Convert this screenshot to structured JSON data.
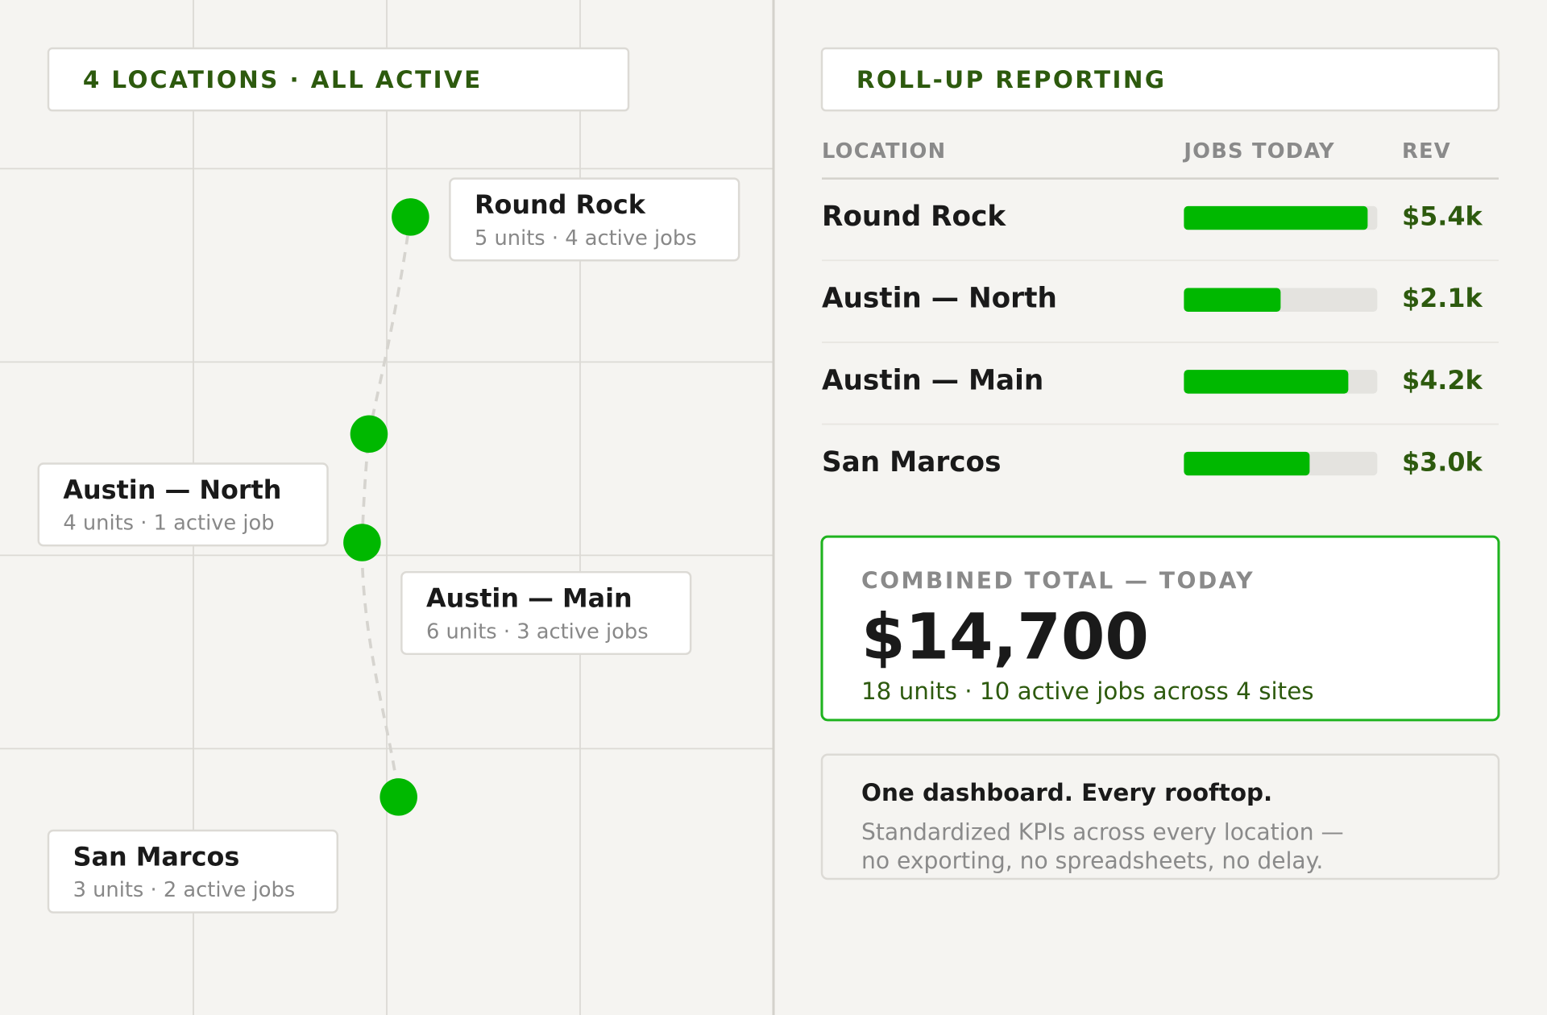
{
  "header": {
    "title": "4 LOCATIONS · ALL ACTIVE"
  },
  "locations": [
    {
      "name": "Round Rock",
      "detail": "5 units · 4 active jobs"
    },
    {
      "name": "Austin — North",
      "detail": "4 units · 1 active job"
    },
    {
      "name": "Austin — Main",
      "detail": "6 units · 3 active jobs"
    },
    {
      "name": "San Marcos",
      "detail": "3 units · 2 active jobs"
    }
  ],
  "report": {
    "title": "ROLL-UP REPORTING",
    "columns": [
      "LOCATION",
      "JOBS TODAY",
      "REV"
    ],
    "bar_scale": [
      0,
      100
    ],
    "rows": [
      {
        "name": "Round Rock",
        "jobs_bar": 95,
        "rev": "$5.4k"
      },
      {
        "name": "Austin — North",
        "jobs_bar": 50,
        "rev": "$2.1k"
      },
      {
        "name": "Austin — Main",
        "jobs_bar": 85,
        "rev": "$4.2k"
      },
      {
        "name": "San Marcos",
        "jobs_bar": 65,
        "rev": "$3.0k"
      }
    ]
  },
  "total": {
    "label": "COMBINED TOTAL — TODAY",
    "value": "$14,700",
    "detail": "18 units · 10 active jobs across 4 sites"
  },
  "note": {
    "title": "One dashboard. Every rooftop.",
    "lines": [
      "Standardized KPIs across every location —",
      "no exporting, no spreadsheets, no delay."
    ]
  }
}
